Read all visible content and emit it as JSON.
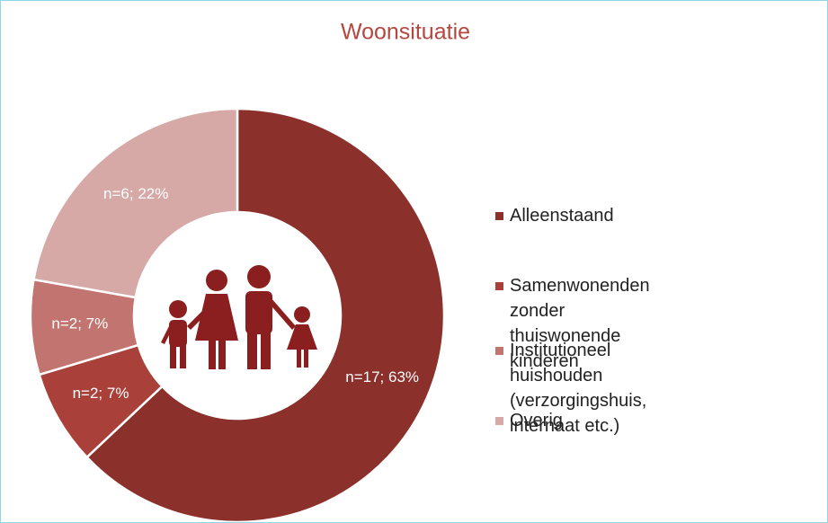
{
  "chart_data": {
    "type": "donut",
    "title": "Woonsituatie",
    "categories": [
      "Alleenstaand",
      "Samenwonenden zonder\nthuiswonende kinderen",
      "Institutioneel huishouden\n(verzorgingshuis, internaat etc.)",
      "Overig"
    ],
    "values": [
      17,
      2,
      2,
      6
    ],
    "value_labels": [
      "n=17; 63%",
      "n=2; 7%",
      "n=2; 7%",
      "n=6; 22%"
    ],
    "colors": [
      "#8b302b",
      "#a9403a",
      "#c27470",
      "#d6a9a7"
    ],
    "legend": "right"
  }
}
